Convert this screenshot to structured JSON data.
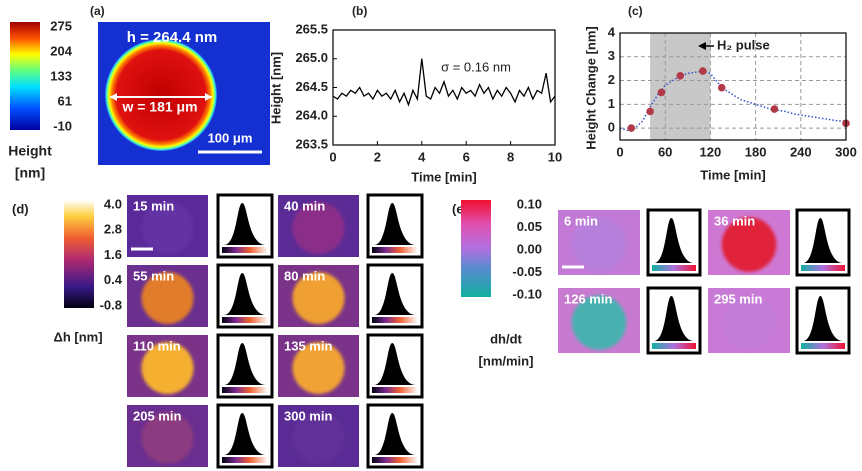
{
  "panel_a": {
    "label": "(a)",
    "height_text": "h = 264.4 nm",
    "width_text": "w = 181 μm",
    "scale_text": "100 μm",
    "colorbar": {
      "clim": [
        -10,
        275
      ],
      "ticks": [
        275,
        204,
        133,
        61,
        -10
      ],
      "label": [
        "Height",
        "[nm]"
      ]
    }
  },
  "chart_data": [
    {
      "type": "line",
      "label": "(b)",
      "xlabel": "Time [min]",
      "ylabel": "Height [nm]",
      "annotation": "σ = 0.16 nm",
      "color": "#000000",
      "grid": false,
      "x": [
        0,
        0.2,
        0.4,
        0.6,
        0.8,
        1,
        1.2,
        1.4,
        1.6,
        1.8,
        2,
        2.2,
        2.4,
        2.6,
        2.8,
        3,
        3.2,
        3.4,
        3.6,
        3.8,
        4,
        4.2,
        4.4,
        4.6,
        4.8,
        5,
        5.2,
        5.4,
        5.6,
        5.8,
        6,
        6.2,
        6.4,
        6.6,
        6.8,
        7,
        7.2,
        7.4,
        7.6,
        7.8,
        8,
        8.2,
        8.4,
        8.6,
        8.8,
        9,
        9.2,
        9.4,
        9.6,
        9.8,
        10
      ],
      "values": [
        264.35,
        264.3,
        264.4,
        264.35,
        264.45,
        264.4,
        264.5,
        264.35,
        264.4,
        264.3,
        264.45,
        264.35,
        264.4,
        264.3,
        264.45,
        264.25,
        264.4,
        264.2,
        264.45,
        264.3,
        265.0,
        264.35,
        264.3,
        264.5,
        264.4,
        264.6,
        264.35,
        264.45,
        264.3,
        264.5,
        264.4,
        264.45,
        264.35,
        264.55,
        264.4,
        264.5,
        264.3,
        264.45,
        264.35,
        264.5,
        264.4,
        264.25,
        264.45,
        264.35,
        264.5,
        264.3,
        264.45,
        264.4,
        264.75,
        264.25,
        264.35
      ],
      "xlim": [
        0,
        10
      ],
      "xticks": [
        0,
        2,
        4,
        6,
        8,
        10
      ],
      "ylim": [
        263.5,
        265.5
      ],
      "yticks": [
        263.5,
        {
          "value": 264,
          "label": "264.0"
        },
        264.5,
        {
          "value": 265,
          "label": "265.0"
        },
        265.5
      ]
    },
    {
      "type": "scatter",
      "label": "(c)",
      "xlabel": "Time [min]",
      "ylabel": "Height Change [nm]",
      "annotation": "H₂ pulse",
      "grid": true,
      "shade": [
        40,
        120
      ],
      "series": [
        {
          "color": "#3355cc",
          "style": "dotted",
          "x": [
            0,
            10,
            20,
            30,
            40,
            50,
            60,
            70,
            80,
            90,
            100,
            110,
            120,
            130,
            140,
            150,
            160,
            170,
            180,
            190,
            200,
            210,
            220,
            230,
            240,
            250,
            260,
            270,
            280,
            290,
            300
          ],
          "values": [
            0,
            -0.1,
            0,
            0.3,
            0.9,
            1.4,
            1.8,
            2.0,
            2.2,
            2.3,
            2.35,
            2.4,
            2.3,
            1.9,
            1.6,
            1.4,
            1.2,
            1.1,
            1.0,
            0.9,
            0.8,
            0.75,
            0.7,
            0.6,
            0.55,
            0.5,
            0.45,
            0.4,
            0.35,
            0.3,
            0.3
          ]
        },
        {
          "color": "#b23a48",
          "style": "marker",
          "x": [
            15,
            40,
            55,
            80,
            110,
            135,
            205,
            300
          ],
          "values": [
            0.0,
            0.7,
            1.5,
            2.2,
            2.4,
            1.7,
            0.8,
            0.2
          ]
        }
      ],
      "xlim": [
        0,
        300
      ],
      "xticks": [
        0,
        60,
        120,
        180,
        240,
        300
      ],
      "ylim": [
        -0.5,
        4
      ],
      "yticks": [
        0,
        1,
        2,
        3,
        4
      ]
    }
  ],
  "panel_d": {
    "label": "(d)",
    "colorbar": {
      "clim": [
        -0.8,
        4
      ],
      "ticks": [
        {
          "value": 4,
          "label": "4.0"
        },
        2.8,
        1.6,
        0.4,
        -0.8
      ],
      "label": "Δh [nm]"
    },
    "tiles": [
      {
        "time": "15 min",
        "bg": "#5b2a9a",
        "spot": "#6433a3"
      },
      {
        "time": "40 min",
        "bg": "#5c2c96",
        "spot": "#8a2f8a"
      },
      {
        "time": "55 min",
        "bg": "#6a2f8f",
        "spot": "#e07b2a"
      },
      {
        "time": "80 min",
        "bg": "#7a3388",
        "spot": "#f0a030"
      },
      {
        "time": "110 min",
        "bg": "#7a3388",
        "spot": "#f5b030"
      },
      {
        "time": "135 min",
        "bg": "#7a3388",
        "spot": "#f0a235"
      },
      {
        "time": "205 min",
        "bg": "#6a2e90",
        "spot": "#8b3a7f"
      },
      {
        "time": "300 min",
        "bg": "#5a2b95",
        "spot": "#613098"
      }
    ]
  },
  "panel_e": {
    "label": "(e)",
    "colorbar": {
      "clim": [
        -0.1,
        0.1
      ],
      "ticks": [
        {
          "value": 0.1,
          "label": "0.10"
        },
        0.05,
        {
          "value": 0,
          "label": "0.00"
        },
        -0.05,
        {
          "value": -0.1,
          "label": "-0.10"
        }
      ],
      "label": [
        "dh/dt",
        "[nm/min]"
      ]
    },
    "tiles": [
      {
        "time": "6 min",
        "bg": "#c27ad6",
        "spot": "#b77fdc"
      },
      {
        "time": "36 min",
        "bg": "#cf78d3",
        "spot": "#e0203a"
      },
      {
        "time": "126 min",
        "bg": "#c87ad0",
        "spot": "#4ab0b0"
      },
      {
        "time": "295 min",
        "bg": "#c87ad6",
        "spot": "#c47dd8"
      }
    ]
  }
}
